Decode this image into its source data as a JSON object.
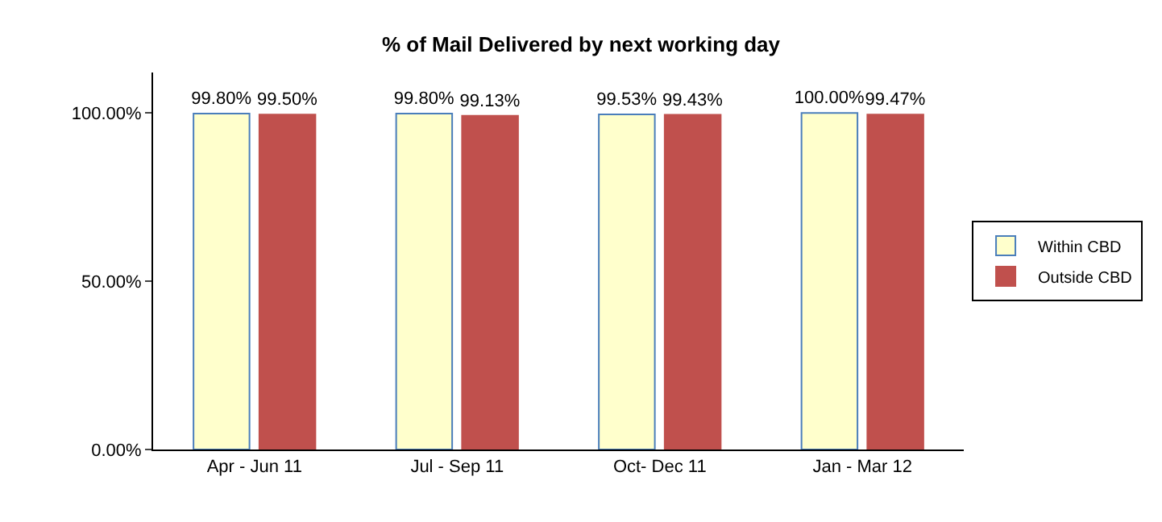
{
  "chart_data": {
    "type": "bar",
    "title": "% of Mail Delivered by next working day",
    "categories": [
      "Apr - Jun 11",
      "Jul - Sep 11",
      "Oct- Dec 11",
      "Jan - Mar 12"
    ],
    "series": [
      {
        "name": "Within CBD",
        "color": "#ffffcc",
        "values": [
          99.8,
          99.8,
          99.53,
          100.0
        ],
        "value_labels": [
          "99.80%",
          "99.80%",
          "99.53%",
          "100.00%"
        ]
      },
      {
        "name": "Outside CBD",
        "color": "#c0504d",
        "values": [
          99.5,
          99.13,
          99.43,
          99.47
        ],
        "value_labels": [
          "99.50%",
          "99.13%",
          "99.43%",
          "99.47%"
        ]
      }
    ],
    "ylim": [
      0,
      112
    ],
    "yticks": [
      {
        "value": 0,
        "label": "0.00%"
      },
      {
        "value": 50,
        "label": "50.00%"
      },
      {
        "value": 100,
        "label": "100.00%"
      }
    ],
    "legend": "right"
  }
}
